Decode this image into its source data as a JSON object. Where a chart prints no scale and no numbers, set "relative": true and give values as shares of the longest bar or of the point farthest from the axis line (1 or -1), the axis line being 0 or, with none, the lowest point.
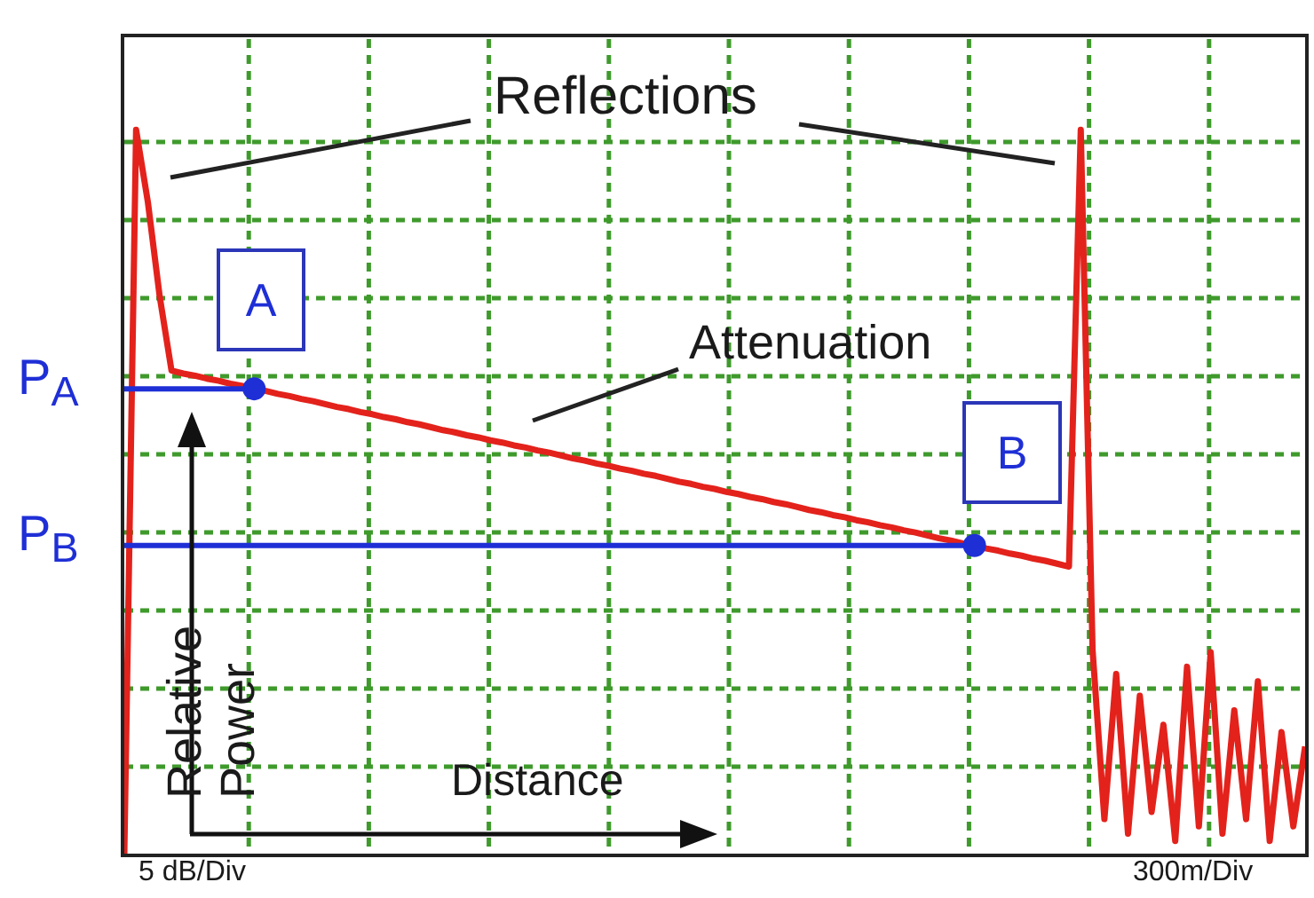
{
  "chart_data": {
    "type": "line",
    "relative": true,
    "grid": true,
    "marker": "none",
    "line_style": "solid",
    "categories": [
      null,
      null,
      null,
      null,
      null,
      null,
      null,
      null,
      null,
      null,
      null,
      null,
      null,
      null,
      null,
      null,
      null,
      null,
      null,
      null,
      null,
      null,
      null,
      null,
      null,
      null,
      null,
      null,
      null,
      null,
      null,
      null,
      null,
      null,
      null,
      null,
      null,
      null,
      null,
      null,
      null,
      null,
      null,
      null,
      null,
      null,
      null,
      null,
      null,
      null,
      null,
      null,
      null,
      null,
      null,
      null,
      null,
      null,
      null,
      null,
      null,
      null,
      null,
      null,
      null,
      null,
      null,
      null,
      null,
      null,
      null,
      null,
      null,
      null,
      null,
      null,
      null,
      null,
      null,
      null,
      null,
      null,
      null,
      null,
      null,
      null,
      null,
      null,
      null,
      null,
      null,
      null,
      null,
      null,
      null,
      null,
      null,
      null,
      null,
      null,
      null
    ],
    "series": [
      {
        "color": "#e3221c",
        "values": [
          0,
          1,
          0.9,
          0.77,
          0.668,
          0.664,
          0.661,
          0.657,
          0.654,
          0.65,
          0.647,
          0.643,
          0.64,
          0.636,
          0.633,
          0.629,
          0.626,
          0.622,
          0.618,
          0.615,
          0.611,
          0.608,
          0.604,
          0.601,
          0.597,
          0.594,
          0.59,
          0.586,
          0.583,
          0.579,
          0.576,
          0.572,
          0.569,
          0.565,
          0.562,
          0.558,
          0.555,
          0.551,
          0.547,
          0.544,
          0.54,
          0.537,
          0.533,
          0.53,
          0.526,
          0.523,
          0.519,
          0.515,
          0.512,
          0.508,
          0.505,
          0.501,
          0.498,
          0.494,
          0.491,
          0.487,
          0.484,
          0.48,
          0.476,
          0.473,
          0.469,
          0.466,
          0.462,
          0.459,
          0.455,
          0.452,
          0.448,
          0.445,
          0.441,
          0.437,
          0.434,
          0.43,
          0.427,
          0.423,
          0.42,
          0.416,
          0.413,
          0.409,
          0.406,
          0.402,
          0.398,
          1,
          0.283,
          0.05,
          0.25,
          0.03,
          0.22,
          0.06,
          0.18,
          0.02,
          0.26,
          0.04,
          0.28,
          0.03,
          0.2,
          0.05,
          0.24,
          0.02,
          0.17,
          0.04,
          0.15
        ]
      }
    ],
    "ref_lines": [
      {
        "axis": "y",
        "value": 0.643,
        "label": "P$_{A}$",
        "color": "#1f2fd6"
      },
      {
        "axis": "y",
        "value": 0.427,
        "label": "P$_{B}$",
        "color": "#1f2fd6"
      }
    ],
    "annotations": [
      "Reflections",
      "Attenuation",
      "A",
      "B",
      "Relative Power",
      "Distance",
      "5 dB/Div",
      "300m/Div"
    ]
  }
}
